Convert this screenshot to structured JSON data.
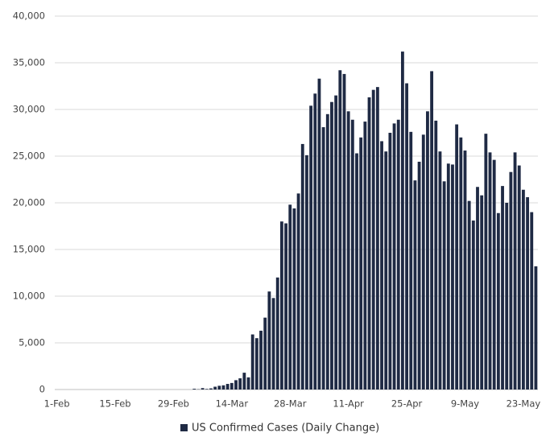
{
  "chart_data": {
    "type": "bar",
    "series": [
      {
        "name": "US Confirmed Cases (Daily Change)",
        "color": "#1f2a44",
        "values": [
          0,
          0,
          0,
          0,
          0,
          0,
          0,
          0,
          0,
          0,
          0,
          0,
          0,
          0,
          0,
          0,
          0,
          0,
          0,
          0,
          0,
          0,
          0,
          0,
          0,
          0,
          0,
          0,
          0,
          0,
          0,
          0,
          0,
          80,
          30,
          150,
          60,
          120,
          300,
          400,
          450,
          600,
          700,
          1000,
          1200,
          1800,
          1300,
          5900,
          5500,
          6300,
          7700,
          10500,
          9800,
          12000,
          18000,
          17800,
          19800,
          19400,
          21000,
          26300,
          25100,
          30400,
          31700,
          33300,
          28100,
          29500,
          30800,
          31500,
          34200,
          33800,
          29800,
          28900,
          25300,
          27000,
          28700,
          31300,
          32100,
          32400,
          26600,
          25500,
          27500,
          28500,
          28900,
          36200,
          32800,
          27600,
          22400,
          24400,
          27300,
          29800,
          34100,
          28800,
          25500,
          22300,
          24200,
          24100,
          28400,
          27000,
          25600,
          20200,
          18100,
          21700,
          20800,
          27400,
          25400,
          24600,
          18900,
          21800,
          20000,
          23300,
          25400,
          24000,
          21400,
          20600,
          19000,
          13200
        ]
      }
    ],
    "categories": [
      "1-Feb",
      null,
      null,
      null,
      null,
      null,
      null,
      null,
      null,
      null,
      null,
      null,
      null,
      null,
      "15-Feb",
      null,
      null,
      null,
      null,
      null,
      null,
      null,
      null,
      null,
      null,
      null,
      null,
      null,
      "29-Feb",
      null,
      null,
      null,
      null,
      null,
      null,
      null,
      null,
      null,
      null,
      null,
      null,
      null,
      "14-Mar",
      null,
      null,
      null,
      null,
      null,
      null,
      null,
      null,
      null,
      null,
      null,
      null,
      null,
      "28-Mar",
      null,
      null,
      null,
      null,
      null,
      null,
      null,
      null,
      null,
      null,
      null,
      null,
      null,
      "11-Apr",
      null,
      null,
      null,
      null,
      null,
      null,
      null,
      null,
      null,
      null,
      null,
      null,
      null,
      "25-Apr",
      null,
      null,
      null,
      null,
      null,
      null,
      null,
      null,
      null,
      null,
      null,
      null,
      null,
      "9-May",
      null,
      null,
      null,
      null,
      null,
      null,
      null,
      null,
      null,
      null,
      null,
      null,
      null,
      "23-May",
      null,
      null,
      null
    ],
    "ylim": [
      0,
      40000
    ],
    "yticks": [
      0,
      {
        "value": 5000,
        "label": "5,000"
      },
      {
        "value": 10000,
        "label": "10,000"
      },
      {
        "value": 15000,
        "label": "15,000"
      },
      {
        "value": 20000,
        "label": "20,000"
      },
      {
        "value": 25000,
        "label": "25,000"
      },
      {
        "value": 30000,
        "label": "30,000"
      },
      {
        "value": 35000,
        "label": "35,000"
      },
      {
        "value": 40000,
        "label": "40,000"
      }
    ],
    "grid": true,
    "legend": "bottom"
  }
}
